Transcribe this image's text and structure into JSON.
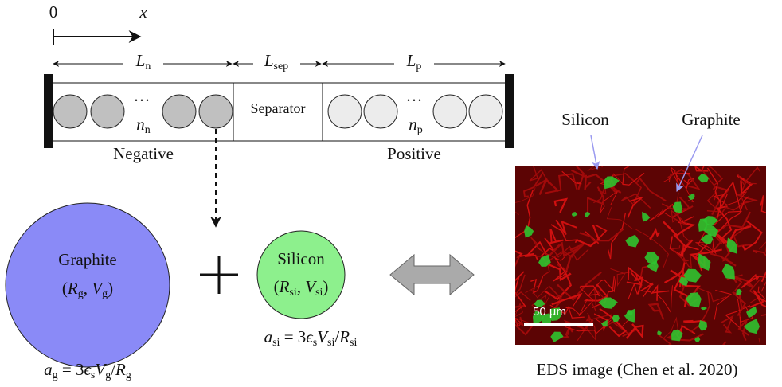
{
  "axis": {
    "origin": "0",
    "variable": "x"
  },
  "lengths": [
    [
      {
        "t": "L",
        "sub": "n"
      }
    ],
    [
      {
        "t": "L",
        "sub": "sep"
      }
    ],
    [
      {
        "t": "L",
        "sub": "p"
      }
    ]
  ],
  "negative": {
    "dots": "···",
    "count": [
      {
        "t": "n",
        "sub": "n"
      }
    ],
    "label": "Negative"
  },
  "separator": "Separator",
  "positive": {
    "dots": "···",
    "count": [
      {
        "t": "n",
        "sub": "p"
      }
    ],
    "label": "Positive"
  },
  "graphite_particle": {
    "name": "Graphite",
    "params": [
      {
        "t": "("
      },
      {
        "t": "R",
        "sub": "g"
      },
      {
        "t": ", "
      },
      {
        "t": "V",
        "sub": "g"
      },
      {
        "t": ")"
      }
    ],
    "area": [
      {
        "t": "a",
        "sub": "g"
      },
      {
        "t": " = 3"
      },
      {
        "t": "ϵ",
        "sub": "s"
      },
      {
        "t": "V",
        "sub": "g"
      },
      {
        "t": "/"
      },
      {
        "t": "R",
        "sub": "g"
      }
    ]
  },
  "silicon_particle": {
    "name": "Silicon",
    "params": [
      {
        "t": "("
      },
      {
        "t": "R",
        "sub": "si"
      },
      {
        "t": ", "
      },
      {
        "t": "V",
        "sub": "si"
      },
      {
        "t": ")"
      }
    ],
    "area": [
      {
        "t": "a",
        "sub": "si"
      },
      {
        "t": " = 3"
      },
      {
        "t": "ϵ",
        "sub": "s"
      },
      {
        "t": "V",
        "sub": "si"
      },
      {
        "t": "/"
      },
      {
        "t": "R",
        "sub": "si"
      }
    ]
  },
  "eds_image": {
    "silicon_label": "Silicon",
    "graphite_label": "Graphite",
    "scale_bar": "50 µm",
    "caption": "EDS image (Chen et al. 2020)"
  }
}
